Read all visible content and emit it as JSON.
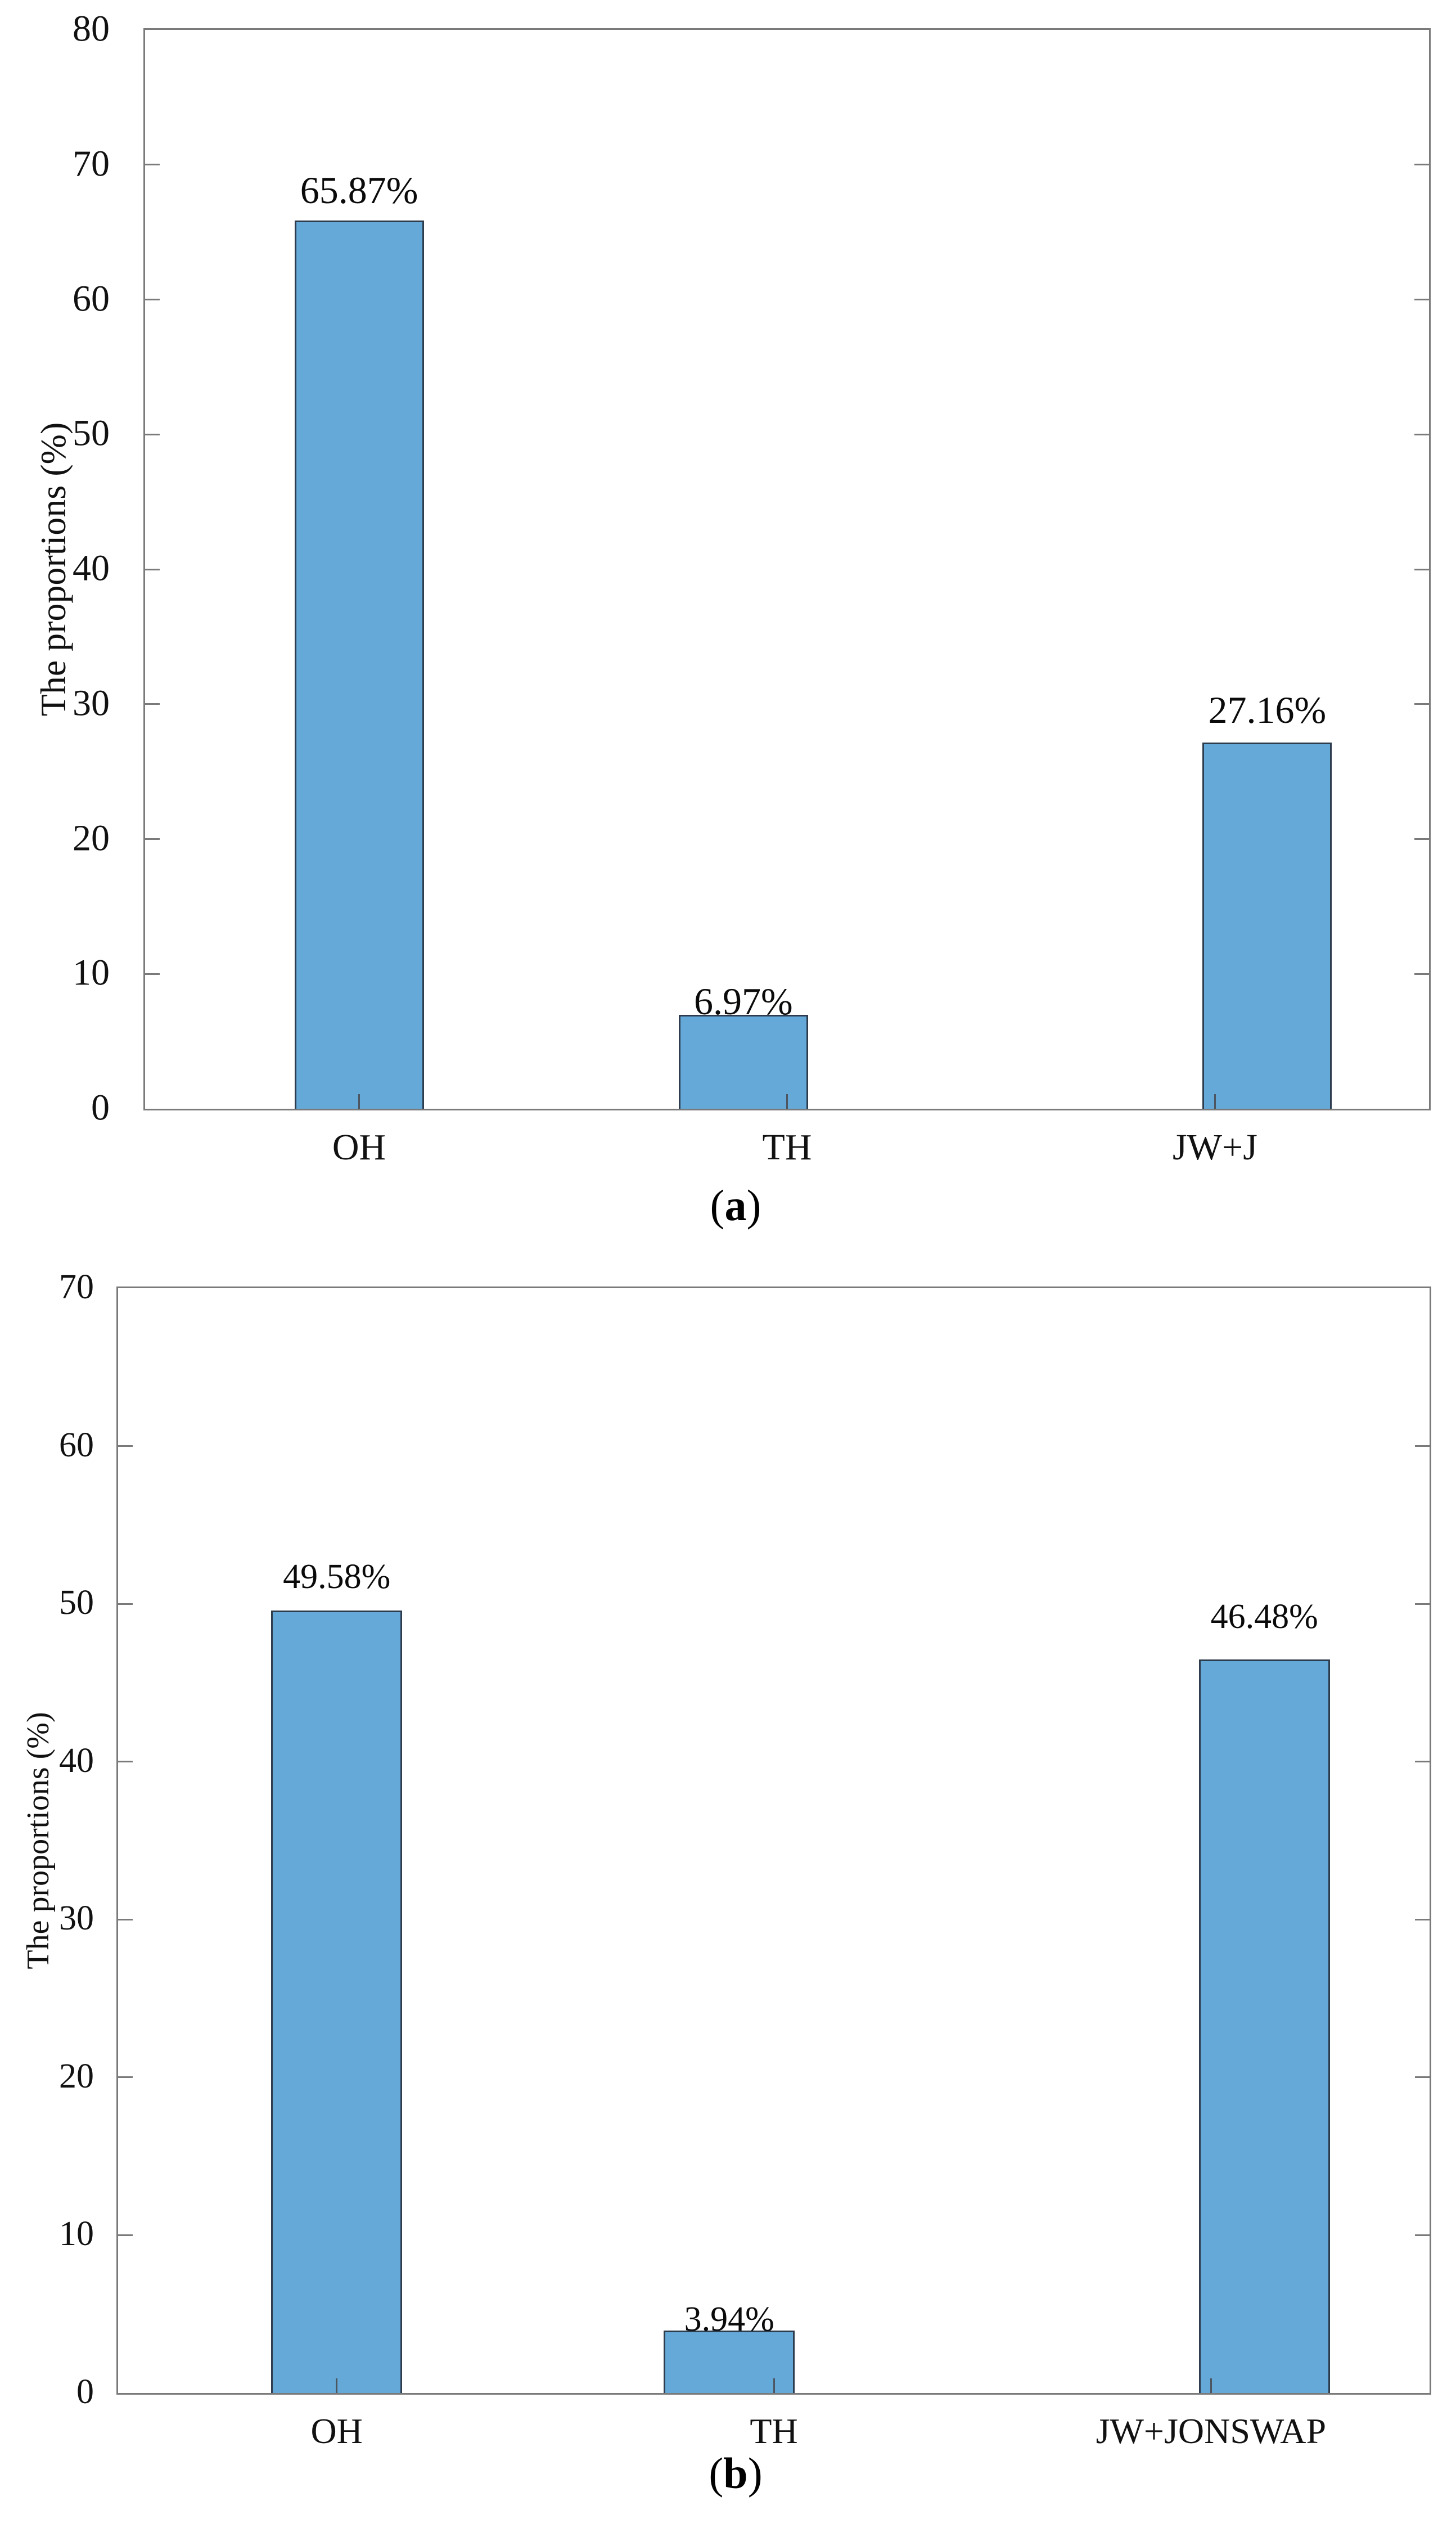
{
  "page": {
    "background": "#ffffff"
  },
  "chart_data": [
    {
      "type": "bar",
      "panel": "a",
      "caption": {
        "open": "(",
        "letter": "a",
        "close": ")"
      },
      "title": "",
      "xlabel": "",
      "ylabel": "The proportions (%)",
      "categories": [
        "OH",
        "TH",
        "JW+J"
      ],
      "values": [
        65.87,
        6.97,
        27.16
      ],
      "value_labels": [
        "65.87%",
        "6.97%",
        "27.16%"
      ],
      "ylim": [
        0,
        80
      ],
      "ytick_step": 10,
      "yticks": [
        0,
        10,
        20,
        30,
        40,
        50,
        60,
        70,
        80
      ],
      "grid": false,
      "legend": null,
      "colors": {
        "bar_fill": "#64A9D8",
        "bar_edge": "#2e3d4e",
        "axis": "#7a7a7a",
        "text": "#111111"
      }
    },
    {
      "type": "bar",
      "panel": "b",
      "caption": {
        "open": "(",
        "letter": "b",
        "close": ")"
      },
      "title": "",
      "xlabel": "",
      "ylabel": "The proportions (%)",
      "categories": [
        "OH",
        "TH",
        "JW+JONSWAP"
      ],
      "values": [
        49.58,
        3.94,
        46.48
      ],
      "value_labels": [
        "49.58%",
        "3.94%",
        "46.48%"
      ],
      "ylim": [
        0,
        70
      ],
      "ytick_step": 10,
      "yticks": [
        0,
        10,
        20,
        30,
        40,
        50,
        60,
        70
      ],
      "grid": false,
      "legend": null,
      "colors": {
        "bar_fill": "#64A9D8",
        "bar_edge": "#2e3d4e",
        "axis": "#7a7a7a",
        "text": "#111111"
      }
    }
  ]
}
